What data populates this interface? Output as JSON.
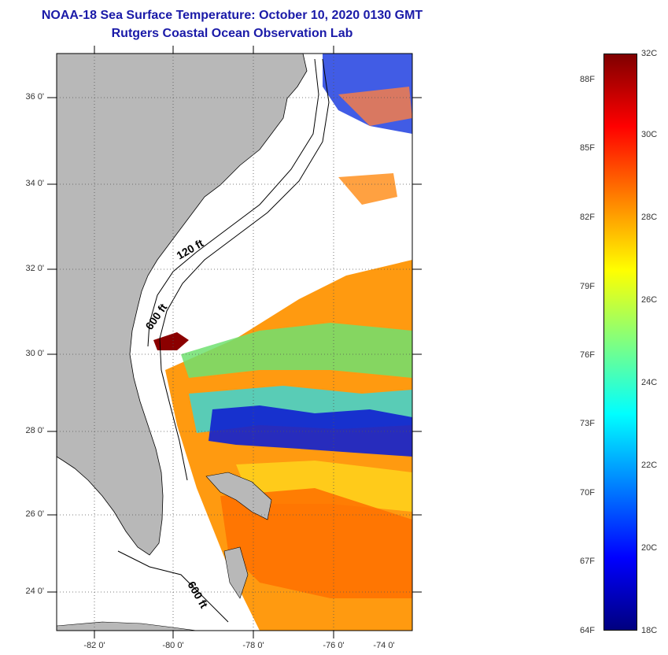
{
  "header": {
    "title": "NOAA-18 Sea Surface Temperature:  October 10, 2020 0130 GMT",
    "subtitle": "Rutgers Coastal Ocean Observation Lab"
  },
  "map": {
    "lat_ticks": [
      "36 0'",
      "34 0'",
      "32 0'",
      "30 0'",
      "28 0'",
      "26 0'",
      "24 0'"
    ],
    "lon_ticks": [
      "-82 0'",
      "-80 0'",
      "-78 0'",
      "-76 0'",
      "-74 0'"
    ],
    "contour_labels": [
      "120 ft",
      "600 ft",
      "600 ft"
    ],
    "colors": {
      "land": "#b8b8b8",
      "cloud": "#ffffff"
    }
  },
  "colorbar": {
    "fahrenheit": [
      "88F",
      "85F",
      "82F",
      "79F",
      "76F",
      "73F",
      "70F",
      "67F",
      "64F"
    ],
    "celsius": [
      "32C",
      "30C",
      "28C",
      "26C",
      "24C",
      "22C",
      "20C",
      "18C"
    ],
    "range_c": [
      18,
      32
    ],
    "gradient": [
      "#00007f",
      "#0000ff",
      "#0080ff",
      "#00ffff",
      "#80ff80",
      "#ffff00",
      "#ff8000",
      "#ff0000",
      "#7f0000"
    ]
  }
}
